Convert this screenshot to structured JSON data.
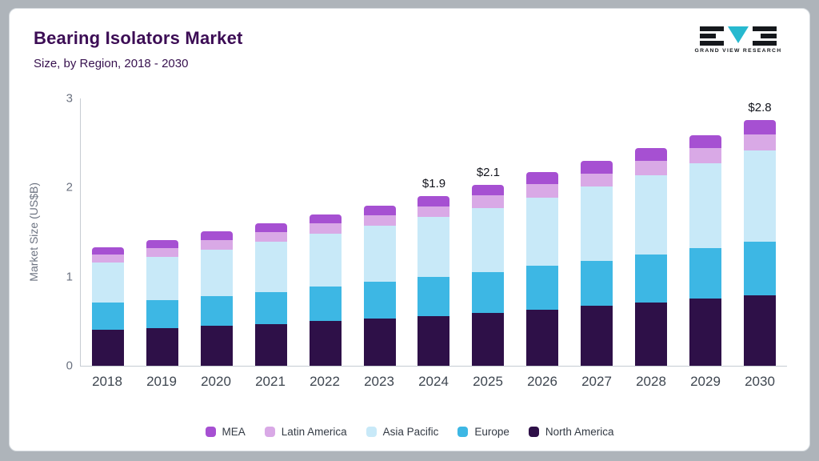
{
  "header": {
    "title": "Bearing Isolators Market",
    "subtitle": "Size, by Region, 2018 - 2030",
    "logo_text": "GRAND VIEW RESEARCH"
  },
  "colors": {
    "title_text": "#3c0d55",
    "axis_text": "#6b7280",
    "logo_teal": "#27b9cf",
    "logo_black": "#15181c"
  },
  "chart_data": {
    "type": "bar",
    "stacked": true,
    "title": "Bearing Isolators Market",
    "subtitle": "Size, by Region, 2018 - 2030",
    "xlabel": "",
    "ylabel": "Market Size (US$B)",
    "ylim": [
      0,
      3
    ],
    "yticks": [
      0,
      1,
      2,
      3
    ],
    "grid": false,
    "legend_position": "bottom",
    "categories": [
      "2018",
      "2019",
      "2020",
      "2021",
      "2022",
      "2023",
      "2024",
      "2025",
      "2026",
      "2027",
      "2028",
      "2029",
      "2030"
    ],
    "series": [
      {
        "name": "North America",
        "color": "#2e1048",
        "values": [
          0.4,
          0.42,
          0.45,
          0.47,
          0.5,
          0.53,
          0.56,
          0.59,
          0.63,
          0.67,
          0.71,
          0.75,
          0.79
        ]
      },
      {
        "name": "Europe",
        "color": "#3db7e4",
        "values": [
          0.31,
          0.32,
          0.33,
          0.36,
          0.39,
          0.41,
          0.44,
          0.46,
          0.49,
          0.51,
          0.54,
          0.57,
          0.6
        ]
      },
      {
        "name": "Asia Pacific",
        "color": "#c8e9f8",
        "values": [
          0.45,
          0.48,
          0.52,
          0.56,
          0.59,
          0.63,
          0.67,
          0.72,
          0.77,
          0.83,
          0.89,
          0.95,
          1.03
        ]
      },
      {
        "name": "Latin America",
        "color": "#d9a9e6",
        "values": [
          0.09,
          0.1,
          0.11,
          0.11,
          0.12,
          0.12,
          0.12,
          0.14,
          0.15,
          0.15,
          0.16,
          0.17,
          0.18
        ]
      },
      {
        "name": "MEA",
        "color": "#a650d2",
        "values": [
          0.08,
          0.09,
          0.1,
          0.1,
          0.1,
          0.11,
          0.11,
          0.12,
          0.13,
          0.14,
          0.14,
          0.15,
          0.16
        ]
      }
    ],
    "legend_order": [
      "MEA",
      "Latin America",
      "Asia Pacific",
      "Europe",
      "North America"
    ],
    "annotations": [
      {
        "category": "2024",
        "text": "$1.9"
      },
      {
        "category": "2025",
        "text": "$2.1"
      },
      {
        "category": "2030",
        "text": "$2.8"
      }
    ]
  }
}
